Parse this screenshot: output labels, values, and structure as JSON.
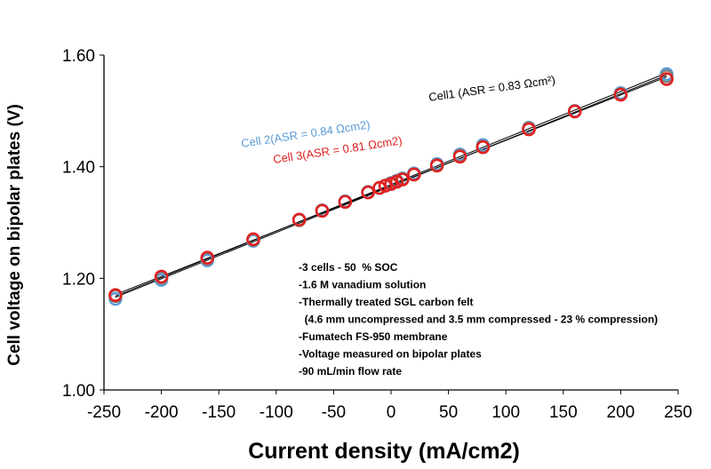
{
  "chart_data": {
    "type": "scatter",
    "title": "",
    "xlabel": "Current density (mA/cm2)",
    "ylabel": "Cell voltage on bipolar plates (V)",
    "xlim": [
      -250,
      250
    ],
    "ylim": [
      1.0,
      1.6
    ],
    "xticks": [
      "-250",
      "-200",
      "-150",
      "-100",
      "-50",
      "0",
      "50",
      "100",
      "150",
      "200",
      "250"
    ],
    "yticks": [
      "1.00",
      "1.20",
      "1.40",
      "1.60"
    ],
    "grid": false,
    "series": [
      {
        "color": "#5b9bd5",
        "x": [
          -240,
          -200,
          -160,
          -120,
          -80,
          -60,
          -40,
          -20,
          -10,
          -5,
          0,
          5,
          10,
          20,
          40,
          60,
          80,
          120,
          160,
          200,
          240
        ],
        "y": [
          1.163,
          1.197,
          1.232,
          1.267,
          1.305,
          1.322,
          1.338,
          1.355,
          1.362,
          1.366,
          1.371,
          1.375,
          1.379,
          1.388,
          1.405,
          1.422,
          1.439,
          1.47,
          1.5,
          1.532,
          1.566
        ]
      },
      {
        "color": "#808080",
        "x": [
          -240,
          -200,
          -160,
          -120,
          -80,
          -60,
          -40,
          -20,
          -10,
          -5,
          0,
          5,
          10,
          20,
          40,
          60,
          80,
          120,
          160,
          200,
          240
        ],
        "y": [
          1.168,
          1.201,
          1.235,
          1.269,
          1.304,
          1.321,
          1.337,
          1.354,
          1.362,
          1.366,
          1.37,
          1.374,
          1.378,
          1.386,
          1.403,
          1.42,
          1.436,
          1.469,
          1.499,
          1.53,
          1.562
        ]
      },
      {
        "color": "#e02020",
        "x": [
          -240,
          -200,
          -160,
          -120,
          -80,
          -60,
          -40,
          -20,
          -10,
          -5,
          0,
          5,
          10,
          20,
          40,
          60,
          80,
          120,
          160,
          200,
          240
        ],
        "y": [
          1.17,
          1.203,
          1.237,
          1.27,
          1.305,
          1.321,
          1.337,
          1.354,
          1.362,
          1.366,
          1.369,
          1.373,
          1.377,
          1.386,
          1.402,
          1.418,
          1.435,
          1.467,
          1.499,
          1.529,
          1.557
        ]
      }
    ],
    "fit_lines": [
      {
        "color": "#000000",
        "x": [
          -240,
          240
        ],
        "y": [
          1.168,
          1.568
        ]
      },
      {
        "color": "#000000",
        "x": [
          -240,
          240
        ],
        "y": [
          1.171,
          1.561
        ]
      },
      {
        "color": "#000000",
        "x": [
          -240,
          240
        ],
        "y": [
          1.166,
          1.564
        ]
      }
    ],
    "annotations": [
      {
        "text": "Cell1 (ASR = 0.83 Ωcm²)",
        "color": "#000000"
      },
      {
        "text": "Cell 2(ASR = 0.84 Ωcm2)",
        "color": "#5b9bd5"
      },
      {
        "text": "Cell 3(ASR = 0.81 Ωcm2)",
        "color": "#e02020"
      }
    ],
    "notes": [
      "-3 cells - 50  % SOC",
      "-1.6 M vanadium solution",
      "-Thermally treated SGL carbon felt",
      "  (4.6 mm uncompressed and 3.5 mm compressed - 23 % compression)",
      "-Fumatech FS-950 membrane",
      "-Voltage measured on bipolar plates",
      "-90 mL/min flow rate"
    ]
  }
}
